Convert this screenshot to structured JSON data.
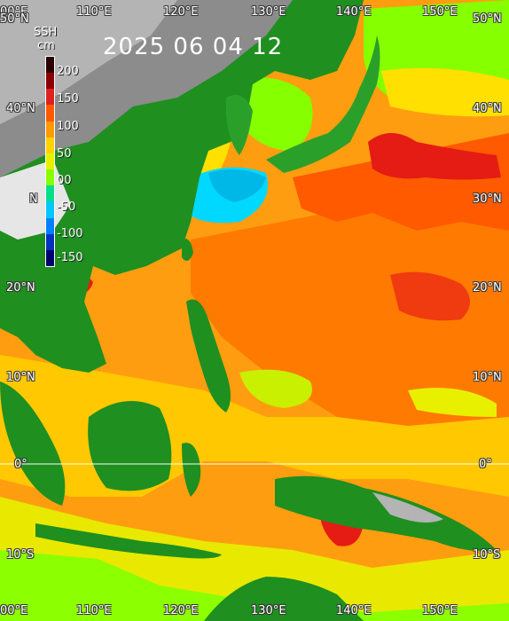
{
  "title": "2025 06 04 12",
  "legend": {
    "label": "SSH",
    "unit": "cm",
    "ticks": [
      "200",
      "150",
      "100",
      "50",
      "00",
      "-50",
      "-100",
      "-150"
    ],
    "colors": [
      "#2a0000",
      "#8b0000",
      "#e02020",
      "#ff5a00",
      "#ff9a00",
      "#ffd400",
      "#e8f000",
      "#86ff00",
      "#00e08a",
      "#00c8ff",
      "#0080ff",
      "#0030c0",
      "#000070"
    ]
  },
  "axes": {
    "top_lon": [
      "00°E",
      "110°E",
      "120°E",
      "130°E",
      "140°E",
      "150°E"
    ],
    "bottom_lon": [
      "00°E",
      "110°E",
      "120°E",
      "130°E",
      "140°E",
      "150°E"
    ],
    "left_lat": [
      "50°N",
      "40°N",
      "N",
      "20°N",
      "10°N",
      "0°",
      "10°S"
    ],
    "right_lat": [
      "50°N",
      "40°N",
      "30°N",
      "20°N",
      "10°N",
      "0°",
      "10°S"
    ]
  }
}
